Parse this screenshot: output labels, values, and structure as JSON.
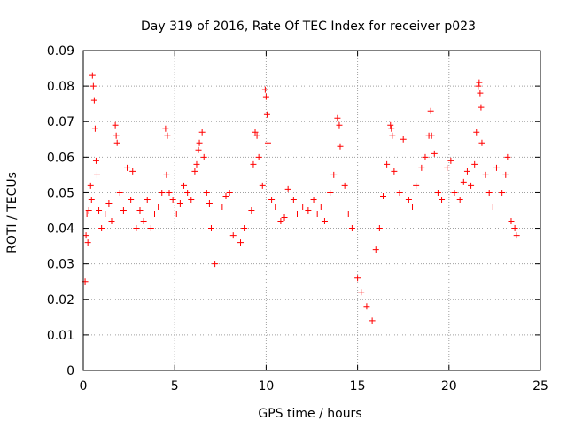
{
  "chart_data": {
    "type": "scatter",
    "title": "Day 319 of 2016, Rate Of TEC Index for receiver p023",
    "xlabel": "GPS time / hours",
    "ylabel": "ROTI / TECUs",
    "xlim": [
      0,
      25
    ],
    "ylim": [
      0,
      0.09
    ],
    "xticks": [
      0,
      5,
      10,
      15,
      20,
      25
    ],
    "yticks": [
      0,
      0.01,
      0.02,
      0.03,
      0.04,
      0.05,
      0.06,
      0.07,
      0.08,
      0.09
    ],
    "xtick_labels": [
      "0",
      "5",
      "10",
      "15",
      "20",
      "25"
    ],
    "ytick_labels": [
      "0",
      "0.01",
      "0.02",
      "0.03",
      "0.04",
      "0.05",
      "0.06",
      "0.07",
      "0.08",
      "0.09"
    ],
    "grid": true,
    "marker": "plus",
    "color": "#ff0000",
    "series": [
      {
        "points": [
          [
            0.1,
            0.025
          ],
          [
            0.15,
            0.038
          ],
          [
            0.2,
            0.044
          ],
          [
            0.25,
            0.036
          ],
          [
            0.3,
            0.045
          ],
          [
            0.4,
            0.052
          ],
          [
            0.45,
            0.048
          ],
          [
            0.5,
            0.083
          ],
          [
            0.55,
            0.08
          ],
          [
            0.6,
            0.076
          ],
          [
            0.65,
            0.068
          ],
          [
            0.7,
            0.059
          ],
          [
            0.75,
            0.055
          ],
          [
            0.85,
            0.045
          ],
          [
            1.0,
            0.04
          ],
          [
            1.2,
            0.044
          ],
          [
            1.4,
            0.047
          ],
          [
            1.55,
            0.042
          ],
          [
            1.75,
            0.069
          ],
          [
            1.8,
            0.066
          ],
          [
            1.85,
            0.064
          ],
          [
            2.0,
            0.05
          ],
          [
            2.2,
            0.045
          ],
          [
            2.4,
            0.057
          ],
          [
            2.6,
            0.048
          ],
          [
            2.7,
            0.056
          ],
          [
            2.9,
            0.04
          ],
          [
            3.1,
            0.045
          ],
          [
            3.3,
            0.042
          ],
          [
            3.5,
            0.048
          ],
          [
            3.7,
            0.04
          ],
          [
            3.9,
            0.044
          ],
          [
            4.1,
            0.046
          ],
          [
            4.3,
            0.05
          ],
          [
            4.5,
            0.068
          ],
          [
            4.6,
            0.066
          ],
          [
            4.55,
            0.055
          ],
          [
            4.7,
            0.05
          ],
          [
            4.9,
            0.048
          ],
          [
            5.1,
            0.044
          ],
          [
            5.3,
            0.047
          ],
          [
            5.5,
            0.052
          ],
          [
            5.7,
            0.05
          ],
          [
            5.9,
            0.048
          ],
          [
            6.1,
            0.056
          ],
          [
            6.2,
            0.058
          ],
          [
            6.3,
            0.062
          ],
          [
            6.35,
            0.064
          ],
          [
            6.5,
            0.067
          ],
          [
            6.6,
            0.06
          ],
          [
            6.75,
            0.05
          ],
          [
            6.9,
            0.047
          ],
          [
            7.0,
            0.04
          ],
          [
            7.2,
            0.03
          ],
          [
            7.6,
            0.046
          ],
          [
            7.8,
            0.049
          ],
          [
            8.0,
            0.05
          ],
          [
            8.2,
            0.038
          ],
          [
            8.6,
            0.036
          ],
          [
            8.8,
            0.04
          ],
          [
            9.2,
            0.045
          ],
          [
            9.3,
            0.058
          ],
          [
            9.4,
            0.067
          ],
          [
            9.5,
            0.066
          ],
          [
            9.6,
            0.06
          ],
          [
            9.8,
            0.052
          ],
          [
            9.95,
            0.079
          ],
          [
            10.0,
            0.077
          ],
          [
            10.05,
            0.072
          ],
          [
            10.1,
            0.064
          ],
          [
            10.3,
            0.048
          ],
          [
            10.5,
            0.046
          ],
          [
            10.8,
            0.042
          ],
          [
            11.0,
            0.043
          ],
          [
            11.2,
            0.051
          ],
          [
            11.5,
            0.048
          ],
          [
            11.7,
            0.044
          ],
          [
            12.0,
            0.046
          ],
          [
            12.3,
            0.045
          ],
          [
            12.6,
            0.048
          ],
          [
            12.8,
            0.044
          ],
          [
            13.0,
            0.046
          ],
          [
            13.2,
            0.042
          ],
          [
            13.5,
            0.05
          ],
          [
            13.7,
            0.055
          ],
          [
            13.9,
            0.071
          ],
          [
            14.0,
            0.069
          ],
          [
            14.05,
            0.063
          ],
          [
            14.3,
            0.052
          ],
          [
            14.5,
            0.044
          ],
          [
            14.7,
            0.04
          ],
          [
            15.0,
            0.026
          ],
          [
            15.2,
            0.022
          ],
          [
            15.5,
            0.018
          ],
          [
            15.8,
            0.014
          ],
          [
            16.0,
            0.034
          ],
          [
            16.2,
            0.04
          ],
          [
            16.4,
            0.049
          ],
          [
            16.6,
            0.058
          ],
          [
            16.8,
            0.069
          ],
          [
            16.85,
            0.068
          ],
          [
            16.9,
            0.066
          ],
          [
            17.0,
            0.056
          ],
          [
            17.3,
            0.05
          ],
          [
            17.5,
            0.065
          ],
          [
            17.8,
            0.048
          ],
          [
            18.0,
            0.046
          ],
          [
            18.2,
            0.052
          ],
          [
            18.5,
            0.057
          ],
          [
            18.7,
            0.06
          ],
          [
            18.9,
            0.066
          ],
          [
            19.0,
            0.073
          ],
          [
            19.05,
            0.066
          ],
          [
            19.2,
            0.061
          ],
          [
            19.4,
            0.05
          ],
          [
            19.6,
            0.048
          ],
          [
            19.9,
            0.057
          ],
          [
            20.1,
            0.059
          ],
          [
            20.3,
            0.05
          ],
          [
            20.6,
            0.048
          ],
          [
            20.8,
            0.053
          ],
          [
            21.0,
            0.056
          ],
          [
            21.2,
            0.052
          ],
          [
            21.4,
            0.058
          ],
          [
            21.5,
            0.067
          ],
          [
            21.6,
            0.08
          ],
          [
            21.65,
            0.081
          ],
          [
            21.7,
            0.078
          ],
          [
            21.75,
            0.074
          ],
          [
            21.8,
            0.064
          ],
          [
            22.0,
            0.055
          ],
          [
            22.2,
            0.05
          ],
          [
            22.4,
            0.046
          ],
          [
            22.6,
            0.057
          ],
          [
            22.9,
            0.05
          ],
          [
            23.1,
            0.055
          ],
          [
            23.2,
            0.06
          ],
          [
            23.4,
            0.042
          ],
          [
            23.6,
            0.04
          ],
          [
            23.7,
            0.038
          ]
        ]
      }
    ]
  }
}
